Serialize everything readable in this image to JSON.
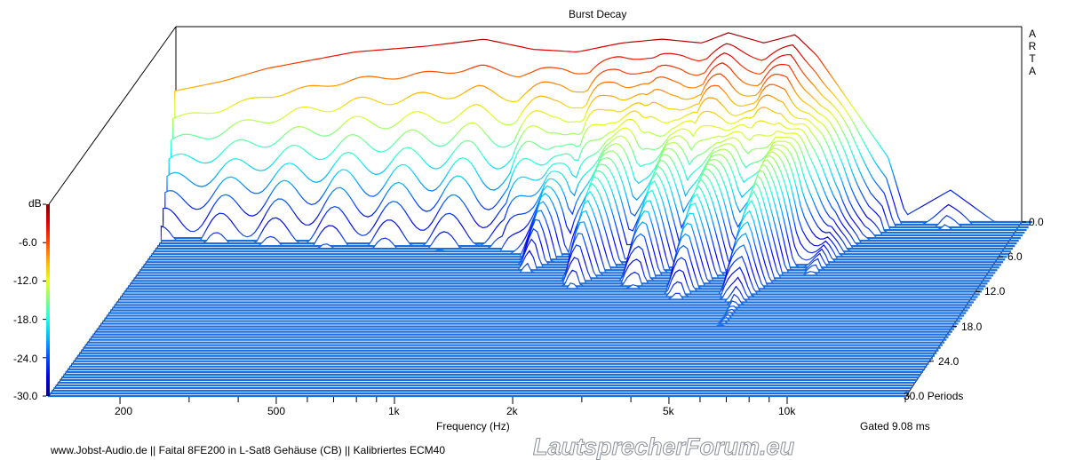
{
  "chart_data": {
    "type": "waterfall",
    "title": "Burst Decay",
    "xlabel": "Frequency (Hz)",
    "ylabel": "dB",
    "zlabel": "Periods",
    "x_scale": "log",
    "xlim": [
      131,
      20000
    ],
    "ylim": [
      -30,
      0
    ],
    "zlim": [
      0,
      30
    ],
    "x_ticks": [
      {
        "value": 200,
        "label": "200"
      },
      {
        "value": 500,
        "label": "500"
      },
      {
        "value": 1000,
        "label": "1k"
      },
      {
        "value": 2000,
        "label": "2k"
      },
      {
        "value": 5000,
        "label": "5k"
      },
      {
        "value": 10000,
        "label": "10k"
      }
    ],
    "x_minor_ticks": [
      300,
      400,
      600,
      700,
      800,
      900,
      3000,
      4000,
      6000,
      7000,
      8000,
      9000,
      20000
    ],
    "y_ticks": [
      "dB",
      "-6.0",
      "-12.0",
      "-18.0",
      "-24.0",
      "-30.0"
    ],
    "z_ticks": [
      "0.0",
      "6.0",
      "12.0",
      "18.0",
      "24.0",
      "30.0 Periods"
    ],
    "initial_response": {
      "freq_hz": [
        131,
        173,
        224,
        377,
        573,
        804,
        1070,
        1388,
        1800,
        2277,
        2880,
        3366,
        4146,
        4978,
        5660,
        6977,
        8600,
        9525,
        12370,
        16030,
        20000
      ],
      "level_db": [
        -9.5,
        -8,
        -6,
        -3.4,
        -2.5,
        -1.4,
        -3,
        -3.4,
        -2,
        -1.4,
        -2,
        -0.4,
        -2,
        -0.7,
        -4,
        -12,
        -20,
        -29,
        -25,
        -30,
        -30
      ]
    },
    "decay_periods": {
      "freq_hz": [
        131,
        500,
        1000,
        1300,
        1500,
        1800,
        2200,
        2600,
        3000,
        3500,
        4200,
        5000,
        6000,
        7000,
        8000,
        9500,
        12000,
        15000,
        20000
      ],
      "periods_to_floor": [
        5,
        5,
        5,
        10,
        6,
        14,
        8,
        14,
        9,
        16,
        10,
        18,
        12,
        15,
        9,
        6,
        12,
        8,
        4
      ]
    },
    "colormap": [
      "#00007f",
      "#0000ff",
      "#00ffff",
      "#ffff00",
      "#ff0000",
      "#7f0000"
    ],
    "floor_color": "#1a6fe0"
  },
  "labels": {
    "brand": [
      "A",
      "R",
      "T",
      "A"
    ],
    "gated": "Gated 9.08 ms",
    "footer": "www.Jobst-Audio.de  || Faital 8FE200 in L-Sat8 Gehäuse (CB)  ||  Kalibriertes ECM40",
    "watermark": "LautsprecherForum.eu"
  }
}
